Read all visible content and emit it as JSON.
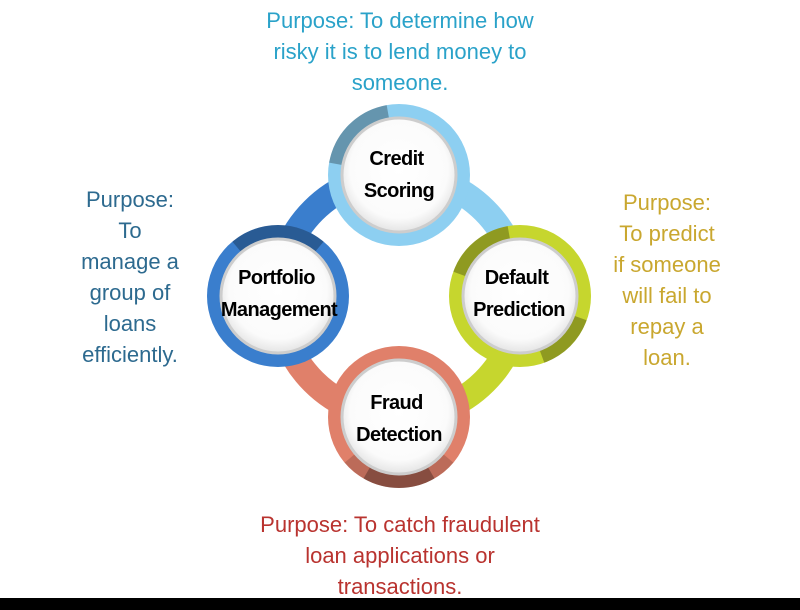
{
  "colors": {
    "background": "#ffffff",
    "bottom_bar": "#000000"
  },
  "nodes": [
    {
      "label_lines": [
        "Credit",
        "Scoring"
      ],
      "color": "#8dcff1",
      "purpose": {
        "lines": [
          "Purpose: To determine how",
          "risky it is to lend money to",
          "someone."
        ],
        "color": "#2aa2c9"
      }
    },
    {
      "label_lines": [
        "Default",
        "Prediction"
      ],
      "color": "#c6d62e",
      "purpose": {
        "lines": [
          "Purpose:",
          "To predict",
          "if someone",
          "will fail to",
          "repay a",
          "loan."
        ],
        "color": "#c9a72f"
      }
    },
    {
      "label_lines": [
        "Fraud",
        "Detection"
      ],
      "color": "#e0806a",
      "purpose": {
        "lines": [
          "Purpose: To catch fraudulent",
          "loan applications or",
          "transactions."
        ],
        "color": "#b9332f"
      }
    },
    {
      "label_lines": [
        "Portfolio",
        "Management"
      ],
      "color": "#3a7ecd",
      "purpose": {
        "lines": [
          "Purpose:",
          "To",
          "manage a",
          "group of",
          "loans",
          "efficiently."
        ],
        "color": "#2d6a8f"
      }
    }
  ]
}
